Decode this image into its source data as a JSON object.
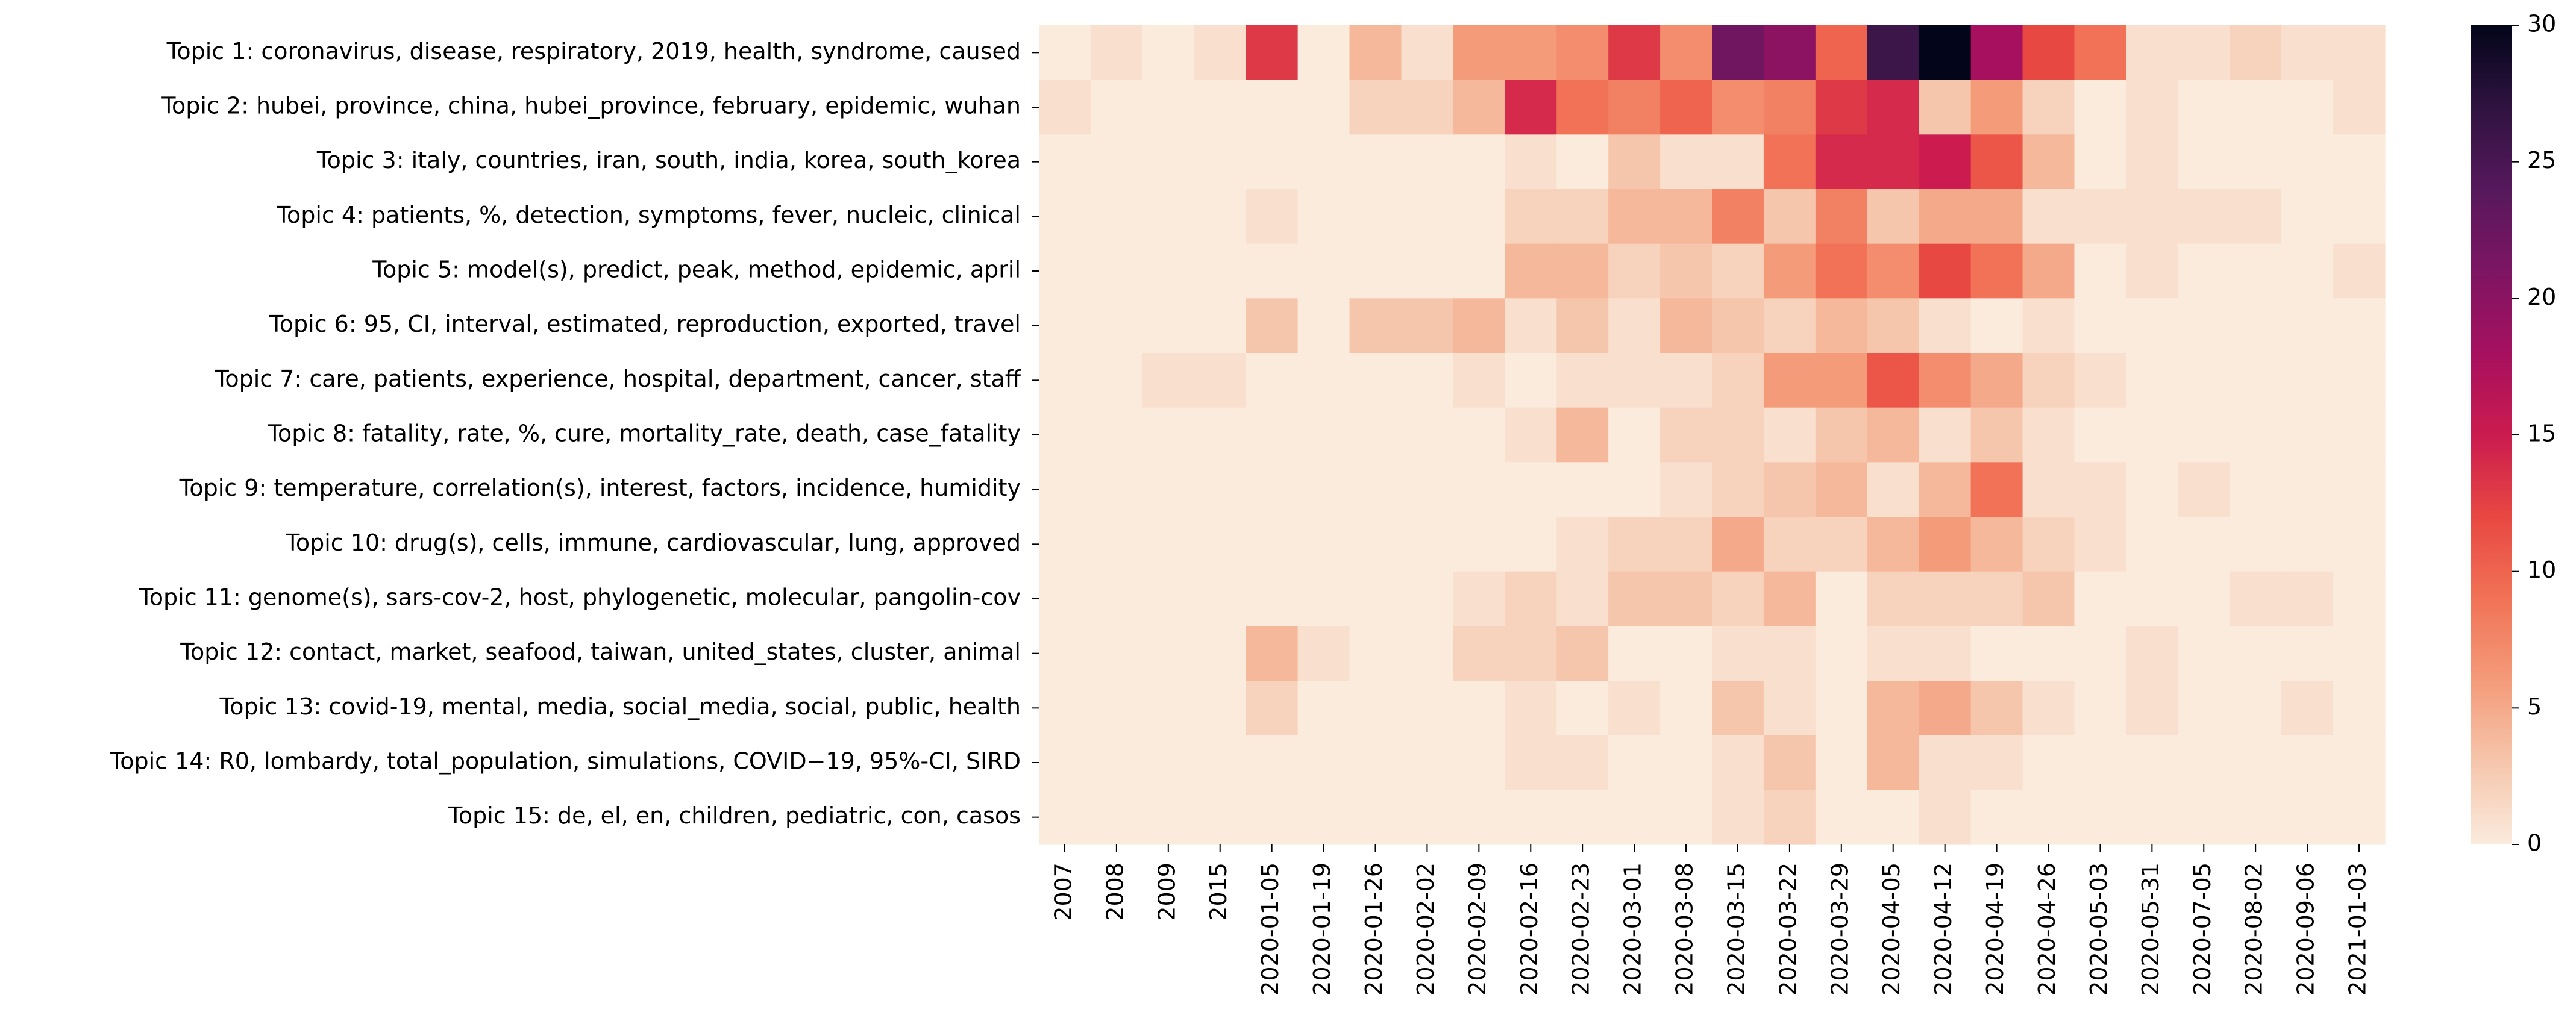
{
  "chart_data": {
    "type": "heatmap",
    "x_categories": [
      "2007",
      "2008",
      "2009",
      "2015",
      "2020-01-05",
      "2020-01-19",
      "2020-01-26",
      "2020-02-02",
      "2020-02-09",
      "2020-02-16",
      "2020-02-23",
      "2020-03-01",
      "2020-03-08",
      "2020-03-15",
      "2020-03-22",
      "2020-03-29",
      "2020-04-05",
      "2020-04-12",
      "2020-04-19",
      "2020-04-26",
      "2020-05-03",
      "2020-05-31",
      "2020-07-05",
      "2020-08-02",
      "2020-09-06",
      "2021-01-03"
    ],
    "y_categories": [
      "Topic 1: coronavirus, disease, respiratory, 2019, health, syndrome, caused",
      "Topic 2: hubei, province, china, hubei_province, february, epidemic, wuhan",
      "Topic 3: italy, countries, iran, south, india, korea, south_korea",
      "Topic 4: patients, %, detection, symptoms, fever, nucleic, clinical",
      "Topic 5: model(s), predict, peak, method, epidemic, april",
      "Topic 6: 95, CI, interval, estimated, reproduction, exported, travel",
      "Topic 7: care, patients, experience, hospital, department, cancer, staff",
      "Topic 8: fatality, rate, %, cure, mortality_rate, death, case_fatality",
      "Topic 9: temperature, correlation(s), interest, factors, incidence, humidity",
      "Topic 10: drug(s), cells, immune, cardiovascular, lung, approved",
      "Topic 11: genome(s), sars-cov-2, host, phylogenetic, molecular, pangolin-cov",
      "Topic 12: contact, market, seafood, taiwan, united_states, cluster, animal",
      "Topic 13: covid-19, mental, media, social_media, social, public, health",
      "Topic 14: R0, lombardy, total_population, simulations, COVID−19, 95%-CI, SIRD",
      "Topic 15: de, el, en, children, pediatric, con, casos"
    ],
    "values": [
      [
        0,
        1,
        0,
        1,
        13,
        0,
        4,
        1,
        6,
        6,
        7,
        13,
        7,
        22,
        20,
        10,
        26,
        30,
        18,
        12,
        9,
        1,
        1,
        2,
        1,
        1
      ],
      [
        1,
        0,
        0,
        0,
        0,
        0,
        2,
        2,
        4,
        14,
        9,
        8,
        10,
        7,
        8,
        13,
        14,
        3,
        6,
        2,
        0,
        1,
        0,
        0,
        0,
        1
      ],
      [
        0,
        0,
        0,
        0,
        0,
        0,
        0,
        0,
        0,
        1,
        0,
        3,
        1,
        1,
        9,
        14,
        14,
        15,
        11,
        4,
        0,
        1,
        0,
        0,
        0,
        0
      ],
      [
        0,
        0,
        0,
        0,
        1,
        0,
        0,
        0,
        0,
        2,
        2,
        4,
        4,
        8,
        3,
        8,
        3,
        5,
        5,
        1,
        1,
        1,
        1,
        1,
        0,
        0
      ],
      [
        0,
        0,
        0,
        0,
        0,
        0,
        0,
        0,
        0,
        4,
        4,
        2,
        3,
        2,
        6,
        9,
        7,
        12,
        9,
        5,
        0,
        1,
        0,
        0,
        0,
        1
      ],
      [
        0,
        0,
        0,
        0,
        3,
        0,
        3,
        3,
        4,
        1,
        3,
        1,
        4,
        3,
        2,
        4,
        3,
        1,
        0,
        1,
        0,
        0,
        0,
        0,
        0,
        0
      ],
      [
        0,
        0,
        1,
        1,
        0,
        0,
        0,
        0,
        1,
        0,
        1,
        1,
        1,
        2,
        6,
        6,
        11,
        7,
        5,
        2,
        1,
        0,
        0,
        0,
        0,
        0
      ],
      [
        0,
        0,
        0,
        0,
        0,
        0,
        0,
        0,
        0,
        1,
        4,
        0,
        2,
        2,
        1,
        3,
        4,
        1,
        3,
        1,
        0,
        0,
        0,
        0,
        0,
        0
      ],
      [
        0,
        0,
        0,
        0,
        0,
        0,
        0,
        0,
        0,
        0,
        0,
        0,
        1,
        2,
        3,
        4,
        1,
        4,
        9,
        1,
        1,
        0,
        1,
        0,
        0,
        0
      ],
      [
        0,
        0,
        0,
        0,
        0,
        0,
        0,
        0,
        0,
        0,
        1,
        2,
        2,
        5,
        2,
        2,
        4,
        6,
        4,
        2,
        1,
        0,
        0,
        0,
        0,
        0
      ],
      [
        0,
        0,
        0,
        0,
        0,
        0,
        0,
        0,
        1,
        2,
        1,
        3,
        3,
        2,
        4,
        0,
        2,
        2,
        2,
        3,
        0,
        0,
        0,
        1,
        1,
        0
      ],
      [
        0,
        0,
        0,
        0,
        4,
        1,
        0,
        0,
        2,
        2,
        3,
        0,
        0,
        1,
        1,
        0,
        1,
        1,
        0,
        0,
        0,
        1,
        0,
        0,
        0,
        0
      ],
      [
        0,
        0,
        0,
        0,
        2,
        0,
        0,
        0,
        0,
        1,
        0,
        1,
        0,
        3,
        1,
        0,
        4,
        5,
        3,
        1,
        0,
        1,
        0,
        0,
        1,
        0
      ],
      [
        0,
        0,
        0,
        0,
        0,
        0,
        0,
        0,
        0,
        1,
        1,
        0,
        0,
        1,
        3,
        0,
        4,
        1,
        1,
        0,
        0,
        0,
        0,
        0,
        0,
        0
      ],
      [
        0,
        0,
        0,
        0,
        0,
        0,
        0,
        0,
        0,
        0,
        0,
        0,
        0,
        1,
        2,
        0,
        0,
        1,
        0,
        0,
        0,
        0,
        0,
        0,
        0,
        0
      ]
    ],
    "colorbar": {
      "min": 0,
      "max": 30,
      "ticks": [
        0,
        5,
        10,
        15,
        20,
        25,
        30
      ],
      "colormap": "rocket_r"
    },
    "colors": {
      "low": "#faebdd",
      "high": "#03051a"
    },
    "title": "",
    "xlabel": "",
    "ylabel": ""
  }
}
